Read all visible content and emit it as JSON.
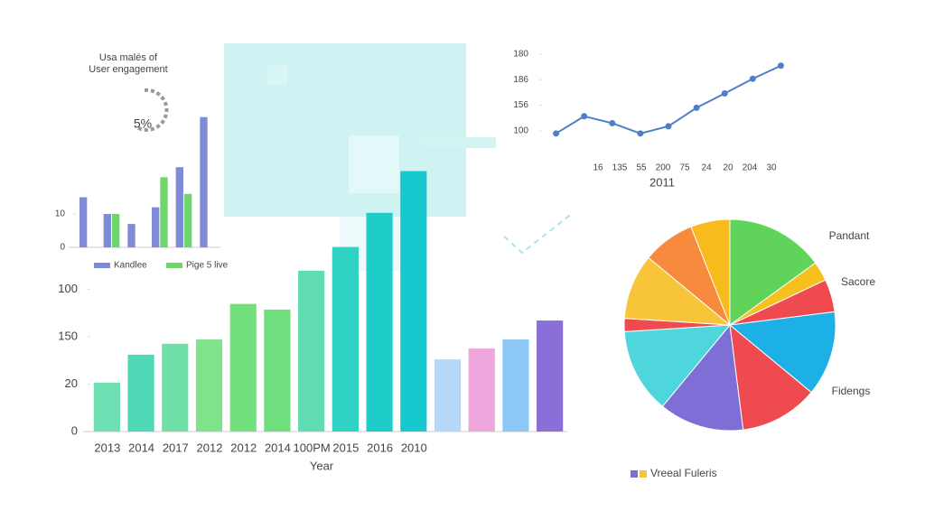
{
  "chart_data": [
    {
      "type": "bar",
      "xlabel": "Year",
      "categories": [
        "2013",
        "2014",
        "2017",
        "2012",
        "2012",
        "2014",
        "100PM",
        "2015",
        "2016",
        "2010",
        null,
        null,
        null,
        null
      ],
      "values": [
        1.03,
        1.62,
        1.85,
        1.94,
        2.69,
        2.57,
        3.39,
        3.89,
        4.61,
        5.49,
        1.52,
        1.75,
        1.94,
        2.34
      ],
      "colors": [
        "#6fe0b4",
        "#4fd8b6",
        "#6ee0a8",
        "#7ee38a",
        "#72e07c",
        "#6fdf7e",
        "#5fdcb4",
        "#2fd2c4",
        "#1fcdc8",
        "#17c9cf",
        "#b4d8f8",
        "#eea6dc",
        "#8cc8f6",
        "#8a6fd8"
      ],
      "ylim": [
        0,
        5.5
      ],
      "yticks": [
        0,
        {
          "value": 1,
          "label": "20"
        },
        {
          "value": 2,
          "label": "150"
        },
        {
          "value": 3,
          "label": "100"
        }
      ]
    },
    {
      "type": "bar",
      "title": "Usa malés of",
      "subtitle": "User engagement",
      "annotation": "5%",
      "categories": [
        null,
        null,
        null,
        null,
        null,
        null
      ],
      "series": [
        {
          "name": "Kandlee",
          "color": "#7f8bd6",
          "values": [
            15,
            10,
            7,
            12,
            24,
            39
          ]
        },
        {
          "name": "Pige 5 live",
          "color": "#6fd66b",
          "values": [
            null,
            10,
            null,
            21,
            16,
            null
          ]
        }
      ],
      "ylim": [
        0,
        40
      ],
      "yticks": [
        0,
        10
      ]
    },
    {
      "type": "line",
      "xlabel": "2011",
      "color": "#4f7fc8",
      "categories": [
        "16",
        "135",
        "55",
        "200",
        "75",
        "24",
        "20",
        "204",
        "30"
      ],
      "values": [
        -0.1,
        0.57,
        0.3,
        -0.1,
        0.18,
        0.9,
        1.46,
        2.03,
        2.54
      ],
      "ylim": [
        -0.3,
        3.2
      ],
      "yticks": [
        {
          "value": 0,
          "label": "100"
        },
        {
          "value": 1,
          "label": "156"
        },
        {
          "value": 2,
          "label": "186"
        },
        {
          "value": 3,
          "label": "180"
        }
      ]
    },
    {
      "type": "pie",
      "values": [
        15,
        3,
        5,
        13,
        12,
        13,
        13,
        2,
        10,
        8,
        6
      ],
      "colors": [
        "#5fd35a",
        "#f7c01e",
        "#ef4a4f",
        "#1cb0e6",
        "#ef4a4f",
        "#7d6fd6",
        "#4fd6dc",
        "#ef4a4f",
        "#f8c53a",
        "#f88a3e",
        "#f8bb1e"
      ],
      "annotations": [
        "Pandant",
        "Sacore",
        "Fidengs"
      ],
      "legend": {
        "label": "Vreeal Fuleris",
        "colors": [
          "#7d6fd6",
          "#f8c53a"
        ]
      }
    }
  ]
}
